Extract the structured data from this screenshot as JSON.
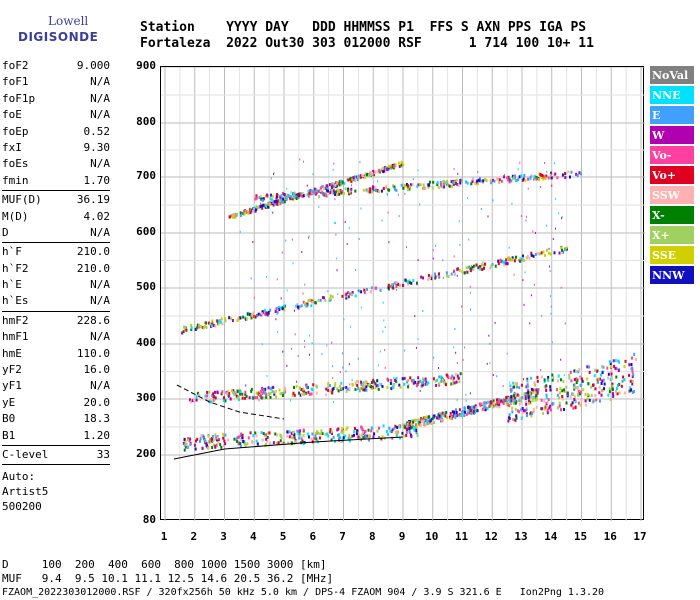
{
  "logo": {
    "line1": "Lowell",
    "line2": "DIGISONDE"
  },
  "header": {
    "labels": "Station    YYYY DAY   DDD HHMMSS P1  FFS S AXN PPS IGA PS",
    "values": "Fortaleza  2022 Out30 303 012000 RSF      1 714 100 10+ 11"
  },
  "params": {
    "group1": [
      {
        "k": "foF2",
        "v": "9.000"
      },
      {
        "k": "foF1",
        "v": "N/A"
      },
      {
        "k": "foF1p",
        "v": "N/A"
      },
      {
        "k": "foE",
        "v": "N/A"
      },
      {
        "k": "foEp",
        "v": "0.52"
      },
      {
        "k": "fxI",
        "v": "9.30"
      },
      {
        "k": "foEs",
        "v": "N/A"
      },
      {
        "k": "fmin",
        "v": "1.70"
      }
    ],
    "group2": [
      {
        "k": "MUF(D)",
        "v": "36.19"
      },
      {
        "k": "M(D)",
        "v": "4.02"
      },
      {
        "k": "D",
        "v": "N/A"
      }
    ],
    "group3": [
      {
        "k": "h`F",
        "v": "210.0"
      },
      {
        "k": "h`F2",
        "v": "210.0"
      },
      {
        "k": "h`E",
        "v": "N/A"
      },
      {
        "k": "h`Es",
        "v": "N/A"
      }
    ],
    "group4": [
      {
        "k": "hmF2",
        "v": "228.6"
      },
      {
        "k": "hmF1",
        "v": "N/A"
      },
      {
        "k": "hmE",
        "v": "110.0"
      },
      {
        "k": "yF2",
        "v": "16.0"
      },
      {
        "k": "yF1",
        "v": "N/A"
      },
      {
        "k": "yE",
        "v": "20.0"
      },
      {
        "k": "B0",
        "v": "18.3"
      },
      {
        "k": "B1",
        "v": "1.20"
      }
    ],
    "group5": [
      {
        "k": "C-level",
        "v": "33"
      }
    ],
    "auto": [
      "Auto:",
      "Artist5",
      "500200"
    ]
  },
  "axes": {
    "y_ticks": [
      "900",
      "800",
      "700",
      "600",
      "500",
      "400",
      "300",
      "200",
      "80"
    ],
    "x_ticks": [
      "1",
      "2",
      "3",
      "4",
      "5",
      "6",
      "7",
      "8",
      "9",
      "10",
      "11",
      "12",
      "13",
      "14",
      "15",
      "16",
      "17"
    ]
  },
  "legend": [
    {
      "label": "NoVal",
      "color": "#808080"
    },
    {
      "label": "NNE",
      "color": "#00e0ff"
    },
    {
      "label": "E",
      "color": "#40a0ff"
    },
    {
      "label": "W",
      "color": "#b000b0"
    },
    {
      "label": "Vo-",
      "color": "#ff40a0"
    },
    {
      "label": "Vo+",
      "color": "#e00020"
    },
    {
      "label": "SSW",
      "color": "#ffb0b0"
    },
    {
      "label": "X-",
      "color": "#008000"
    },
    {
      "label": "X+",
      "color": "#a0d060"
    },
    {
      "label": "SSE",
      "color": "#d0d000"
    },
    {
      "label": "NNW",
      "color": "#1010c0"
    }
  ],
  "bottom": {
    "d_row": "D     100  200  400  600  800 1000 1500 3000 [km]",
    "muf_row": "MUF   9.4  9.5 10.1 11.1 12.5 14.6 20.5 36.2 [MHz]"
  },
  "footer": "FZAOM_2022303012000.RSF / 320fx256h 50 kHz 5.0 km / DPS-4 FZAOM 904 / 3.9 S 321.6 E   Ion2Png 1.3.20"
}
